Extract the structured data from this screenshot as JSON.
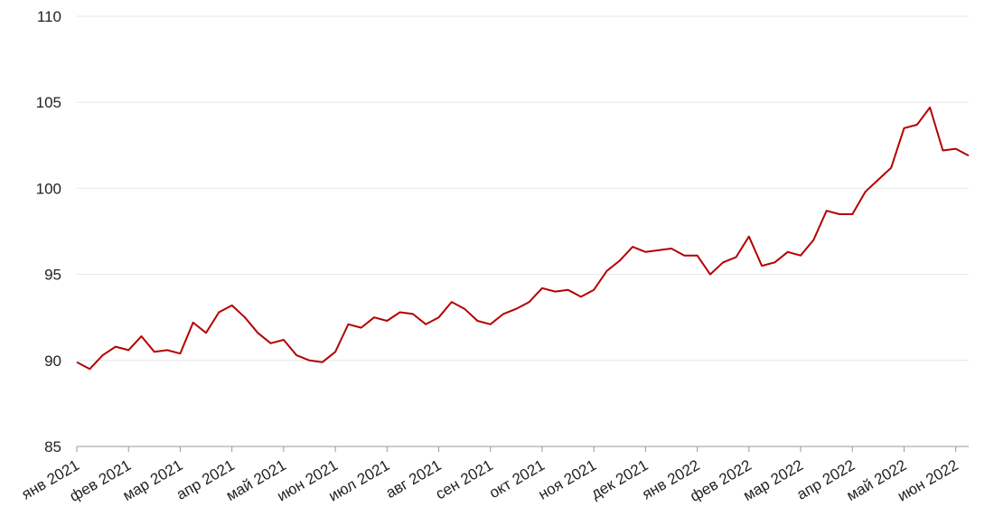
{
  "chart_data": {
    "type": "line",
    "categories": [
      "янв 2021",
      null,
      null,
      null,
      "фев 2021",
      null,
      null,
      null,
      "мар 2021",
      null,
      null,
      null,
      "апр 2021",
      null,
      null,
      null,
      "май 2021",
      null,
      null,
      null,
      "июн 2021",
      null,
      null,
      null,
      "июл 2021",
      null,
      null,
      null,
      "авг 2021",
      null,
      null,
      null,
      "сен 2021",
      null,
      null,
      null,
      "окт 2021",
      null,
      null,
      null,
      "ноя 2021",
      null,
      null,
      null,
      "дек 2021",
      null,
      null,
      null,
      "янв 2022",
      null,
      null,
      null,
      "фев 2022",
      null,
      null,
      null,
      "мар 2022",
      null,
      null,
      null,
      "апр 2022",
      null,
      null,
      null,
      "май 2022",
      null,
      null,
      null,
      "июн 2022",
      null
    ],
    "series": [
      {
        "color": "#b40000",
        "values": [
          89.9,
          89.5,
          90.3,
          90.8,
          90.6,
          91.4,
          90.5,
          90.6,
          90.4,
          92.2,
          91.6,
          92.8,
          93.2,
          92.5,
          91.6,
          91.0,
          91.2,
          90.3,
          90.0,
          89.9,
          90.5,
          92.1,
          91.9,
          92.5,
          92.3,
          92.8,
          92.7,
          92.1,
          92.5,
          93.4,
          93.0,
          92.3,
          92.1,
          92.7,
          93.0,
          93.4,
          94.2,
          94.0,
          94.1,
          93.7,
          94.1,
          95.2,
          95.8,
          96.6,
          96.3,
          96.4,
          96.5,
          96.1,
          96.1,
          95.0,
          95.7,
          96.0,
          97.2,
          95.5,
          95.7,
          96.3,
          96.1,
          97.0,
          98.7,
          98.5,
          98.5,
          99.8,
          100.5,
          101.2,
          103.5,
          103.7,
          104.7,
          102.2,
          102.3,
          101.9
        ]
      }
    ],
    "ylim": [
      85,
      110
    ],
    "yticks": [
      85,
      90,
      95,
      100,
      105,
      110
    ],
    "grid": true
  }
}
